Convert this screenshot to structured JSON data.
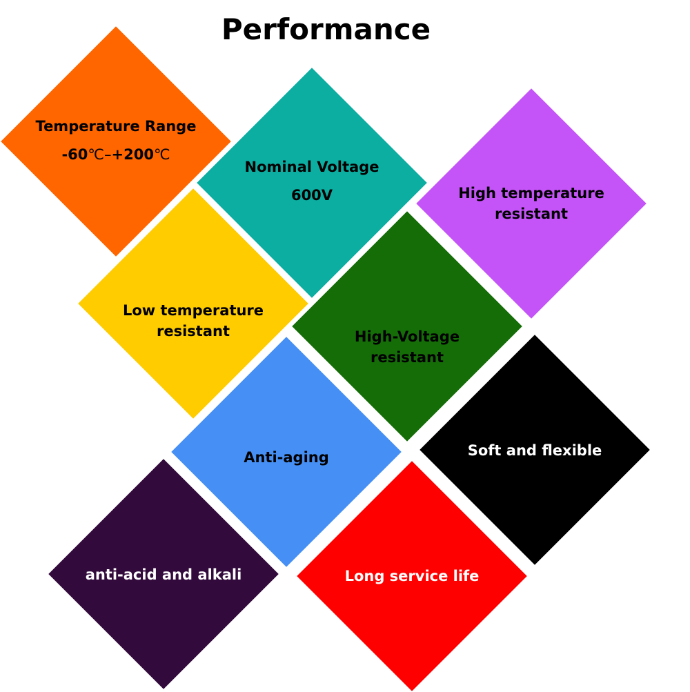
{
  "title": "Performance",
  "tiles": [
    {
      "label": "Temperature Range",
      "value_parts": [
        "-60",
        "℃",
        "–",
        "+200",
        "℃"
      ],
      "color": "#ff6600",
      "text_color": "#000000"
    },
    {
      "label": "Nominal Voltage",
      "value": "600V",
      "color": "#0caea2",
      "text_color": "#000000"
    },
    {
      "label": "High temperature resistant",
      "color": "#c454f7",
      "text_color": "#000000"
    },
    {
      "label": "Low temperature resistant",
      "color": "#ffcc00",
      "text_color": "#000000"
    },
    {
      "label": "High-Voltage resistant",
      "color": "#156d08",
      "text_color": "#000000"
    },
    {
      "label": "Anti-aging",
      "color": "#4690f5",
      "text_color": "#000000"
    },
    {
      "label": "Soft and flexible",
      "color": "#000000",
      "text_color": "#ffffff"
    },
    {
      "label": "anti-acid and alkali",
      "color": "#330a3c",
      "text_color": "#ffffff"
    },
    {
      "label": "Long service life",
      "color": "#ff0000",
      "text_color": "#ffffff"
    }
  ]
}
